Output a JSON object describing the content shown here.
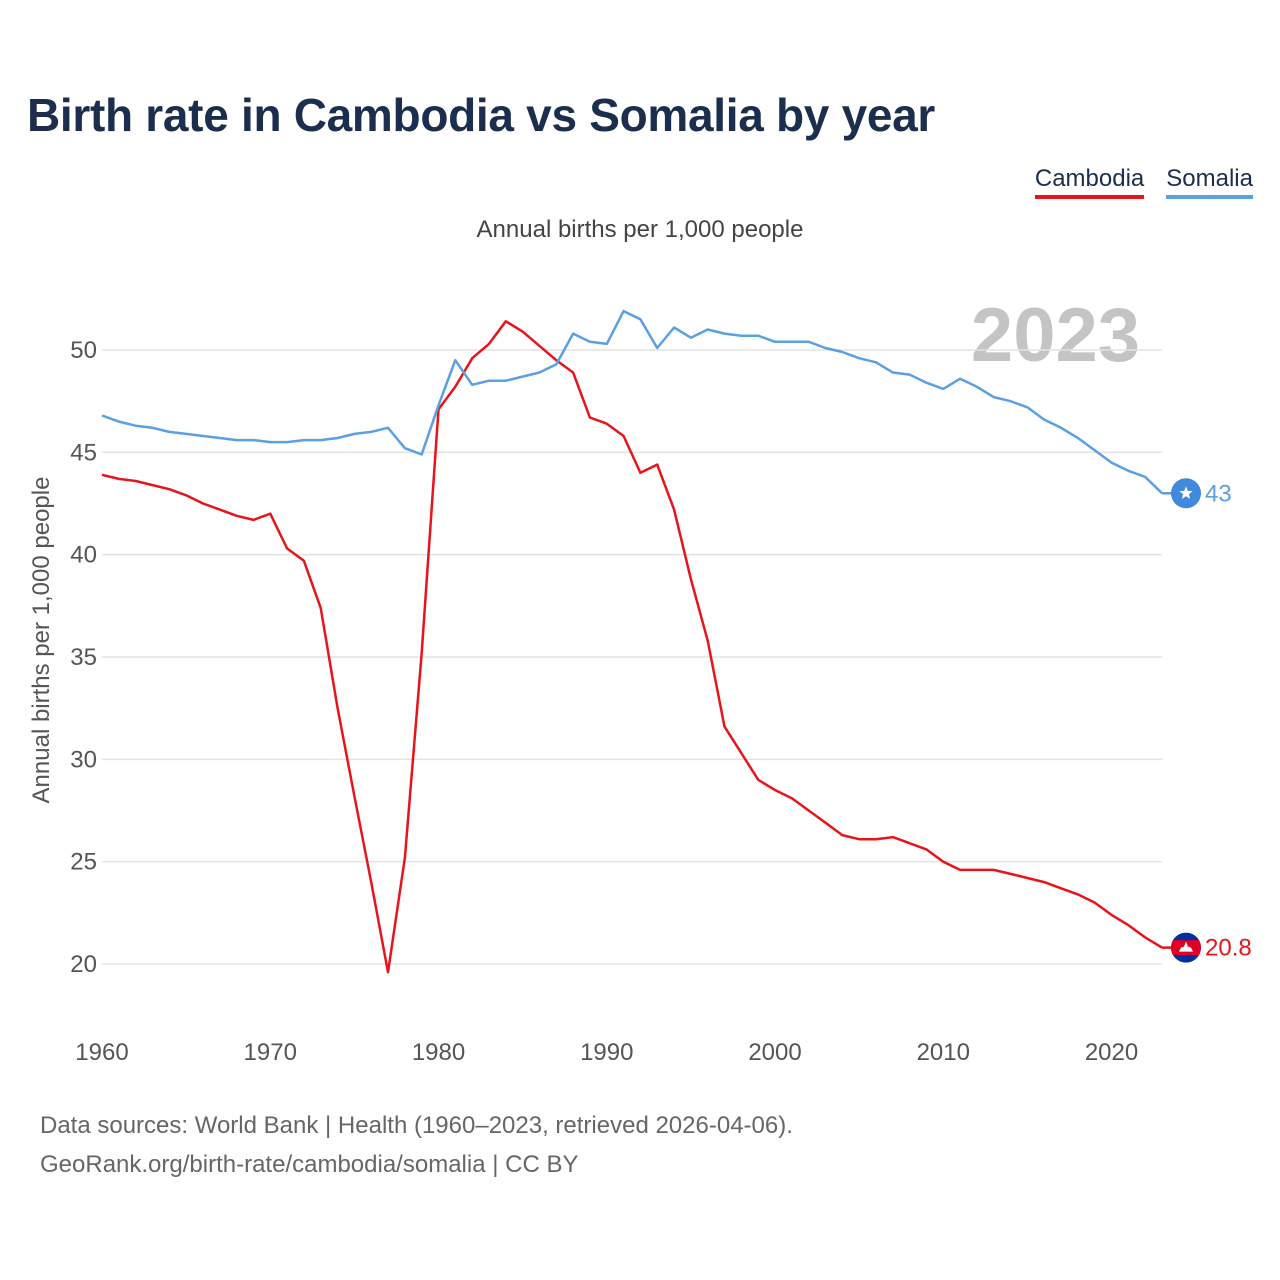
{
  "header": {
    "title": "Birth rate in Cambodia vs Somalia by year",
    "subtitle": "Annual births per 1,000 people",
    "year": "2023"
  },
  "legend": {
    "cambodia": "Cambodia",
    "somalia": "Somalia"
  },
  "footer": {
    "source_line1": "Data sources: World Bank | Health (1960–2023, retrieved 2026-04-06).",
    "source_line2": "GeoRank.org/birth-rate/cambodia/somalia | CC BY"
  },
  "chart_data": {
    "type": "line",
    "title": "Birth rate in Cambodia vs Somalia by year",
    "subtitle": "Annual births per 1,000 people",
    "xlabel": "",
    "ylabel": "Annual births per 1,000 people",
    "xlim": [
      1960,
      2023
    ],
    "ylim": [
      20,
      52
    ],
    "x_ticks": [
      1960,
      1970,
      1980,
      1990,
      2000,
      2010,
      2020
    ],
    "y_ticks": [
      20,
      25,
      30,
      35,
      40,
      45,
      50
    ],
    "grid": true,
    "legend_position": "top-right",
    "x": [
      1960,
      1961,
      1962,
      1963,
      1964,
      1965,
      1966,
      1967,
      1968,
      1969,
      1970,
      1971,
      1972,
      1973,
      1974,
      1975,
      1976,
      1977,
      1978,
      1979,
      1980,
      1981,
      1982,
      1983,
      1984,
      1985,
      1986,
      1987,
      1988,
      1989,
      1990,
      1991,
      1992,
      1993,
      1994,
      1995,
      1996,
      1997,
      1998,
      1999,
      2000,
      2001,
      2002,
      2003,
      2004,
      2005,
      2006,
      2007,
      2008,
      2009,
      2010,
      2011,
      2012,
      2013,
      2014,
      2015,
      2016,
      2017,
      2018,
      2019,
      2020,
      2021,
      2022,
      2023
    ],
    "series": [
      {
        "name": "Cambodia",
        "color": "#e8141b",
        "end_label": "20.8",
        "values": [
          43.9,
          43.7,
          43.6,
          43.4,
          43.2,
          42.9,
          42.5,
          42.2,
          41.9,
          41.7,
          42.0,
          40.3,
          39.7,
          37.4,
          32.5,
          28.2,
          24.0,
          19.6,
          25.2,
          35.2,
          47.1,
          48.2,
          49.6,
          50.3,
          51.4,
          50.9,
          50.2,
          49.5,
          48.9,
          46.7,
          46.4,
          45.8,
          44.0,
          44.4,
          42.2,
          38.8,
          35.8,
          31.6,
          30.3,
          29.0,
          28.5,
          28.1,
          27.5,
          26.9,
          26.3,
          26.1,
          26.1,
          26.2,
          25.9,
          25.6,
          25.0,
          24.6,
          24.6,
          24.6,
          24.4,
          24.2,
          24.0,
          23.7,
          23.4,
          23.0,
          22.4,
          21.9,
          21.3,
          20.8
        ]
      },
      {
        "name": "Somalia",
        "color": "#5aa0e3",
        "end_label": "43",
        "values": [
          46.8,
          46.5,
          46.3,
          46.2,
          46.0,
          45.9,
          45.8,
          45.7,
          45.6,
          45.6,
          45.5,
          45.5,
          45.6,
          45.6,
          45.7,
          45.9,
          46.0,
          46.2,
          45.2,
          44.9,
          47.3,
          49.5,
          48.3,
          48.5,
          48.5,
          48.7,
          48.9,
          49.3,
          50.8,
          50.4,
          50.3,
          51.9,
          51.5,
          50.1,
          51.1,
          50.6,
          51.0,
          50.8,
          50.7,
          50.7,
          50.4,
          50.4,
          50.4,
          50.1,
          49.9,
          49.6,
          49.4,
          48.9,
          48.8,
          48.4,
          48.1,
          48.6,
          48.2,
          47.7,
          47.5,
          47.2,
          46.6,
          46.2,
          45.7,
          45.1,
          44.5,
          44.1,
          43.8,
          43.0
        ]
      }
    ]
  }
}
